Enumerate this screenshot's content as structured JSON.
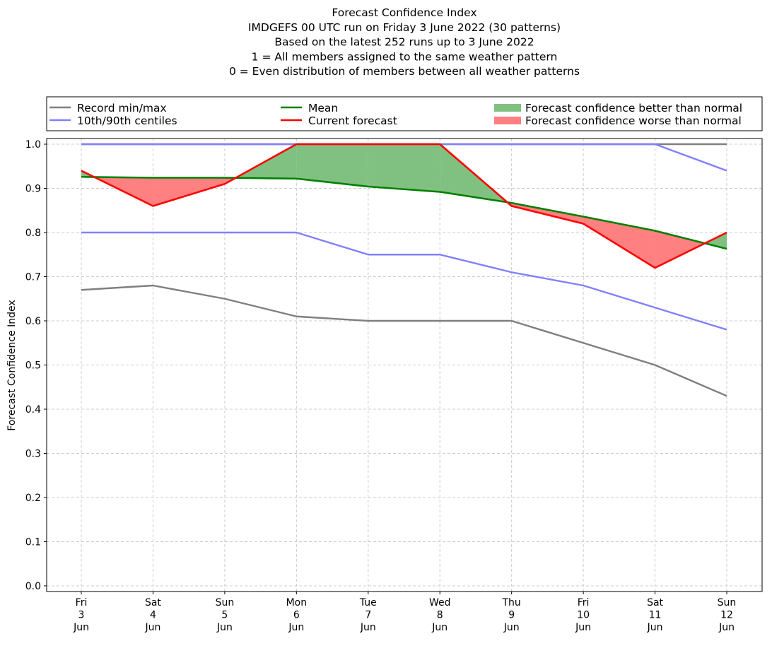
{
  "chart_data": {
    "type": "line",
    "title_lines": [
      "Forecast Confidence Index",
      "IMDGEFS 00 UTC run on Friday 3 June 2022 (30 patterns)",
      "Based on the latest 252 runs up to 3 June 2022",
      "1 = All members assigned to the same weather pattern",
      "0 = Even distribution of members between all weather patterns"
    ],
    "ylabel": "Forecast Confidence Index",
    "ylim": [
      0.0,
      1.0
    ],
    "yticks": [
      "0.0",
      "0.1",
      "0.2",
      "0.3",
      "0.4",
      "0.5",
      "0.6",
      "0.7",
      "0.8",
      "0.9",
      "1.0"
    ],
    "grid": true,
    "categories": [
      [
        "Fri",
        "3",
        "Jun"
      ],
      [
        "Sat",
        "4",
        "Jun"
      ],
      [
        "Sun",
        "5",
        "Jun"
      ],
      [
        "Mon",
        "6",
        "Jun"
      ],
      [
        "Tue",
        "7",
        "Jun"
      ],
      [
        "Wed",
        "8",
        "Jun"
      ],
      [
        "Thu",
        "9",
        "Jun"
      ],
      [
        "Fri",
        "10",
        "Jun"
      ],
      [
        "Sat",
        "11",
        "Jun"
      ],
      [
        "Sun",
        "12",
        "Jun"
      ]
    ],
    "series": {
      "record_min": [
        0.67,
        0.68,
        0.65,
        0.61,
        0.6,
        0.6,
        0.6,
        0.55,
        0.5,
        0.43
      ],
      "record_max": [
        1.0,
        1.0,
        1.0,
        1.0,
        1.0,
        1.0,
        1.0,
        1.0,
        1.0,
        1.0
      ],
      "p10": [
        0.8,
        0.8,
        0.8,
        0.8,
        0.75,
        0.75,
        0.71,
        0.68,
        0.63,
        0.58
      ],
      "p90": [
        1.0,
        1.0,
        1.0,
        1.0,
        1.0,
        1.0,
        1.0,
        1.0,
        1.0,
        0.94
      ],
      "mean": [
        0.926,
        0.924,
        0.924,
        0.922,
        0.904,
        0.892,
        0.867,
        0.836,
        0.804,
        0.763
      ],
      "current": [
        0.94,
        0.86,
        0.91,
        1.0,
        1.0,
        1.0,
        0.86,
        0.82,
        0.72,
        0.8
      ]
    },
    "legend": {
      "placement": "top",
      "items": [
        {
          "key": "record",
          "label": "Record min/max",
          "kind": "line",
          "color": "#7f7f7f"
        },
        {
          "key": "mean",
          "label": "Mean",
          "kind": "line",
          "color": "#008000"
        },
        {
          "key": "better",
          "label": "Forecast confidence better than normal",
          "kind": "patch",
          "color": "#80c080"
        },
        {
          "key": "centiles",
          "label": "10th/90th centiles",
          "kind": "line",
          "color": "#8080ff"
        },
        {
          "key": "current",
          "label": "Current forecast",
          "kind": "line",
          "color": "#ff0000"
        },
        {
          "key": "worse",
          "label": "Forecast confidence worse than normal",
          "kind": "patch",
          "color": "#ff8080"
        }
      ]
    },
    "colors": {
      "record": "#7f7f7f",
      "centiles": "#8080ff",
      "mean": "#008000",
      "current": "#ff0000",
      "better": "#80c080",
      "worse": "#ff8080"
    }
  }
}
